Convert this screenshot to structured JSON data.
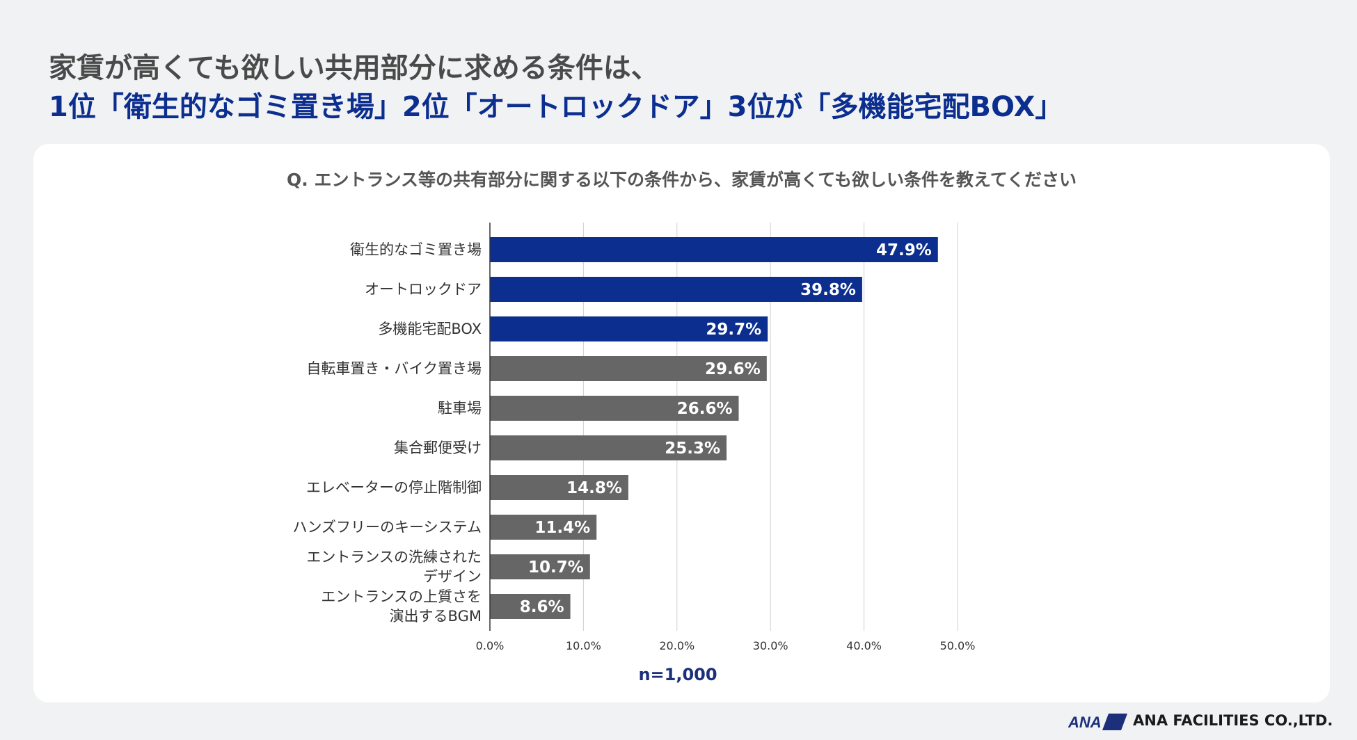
{
  "header": {
    "title_line1": "家賃が高くても欲しい共用部分に求める条件は、",
    "title_line2": "1位「衛生的なゴミ置き場」2位「オートロックドア」3位が「多機能宅配BOX」"
  },
  "footer": {
    "logo_text": "ANA",
    "company": "ANA FACILITIES CO.,LTD."
  },
  "colors": {
    "highlight": "#0b2e8f",
    "other": "#666666",
    "gridline": "#d0d0d0"
  },
  "chart_data": {
    "type": "bar",
    "orientation": "horizontal",
    "title": "Q. エントランス等の共有部分に関する以下の条件から、家賃が高くても欲しい条件を教えてください",
    "categories": [
      [
        "衛生的なゴミ置き場"
      ],
      [
        "オートロックドア"
      ],
      [
        "多機能宅配BOX"
      ],
      [
        "自転車置き・バイク置き場"
      ],
      [
        "駐車場"
      ],
      [
        "集合郵便受け"
      ],
      [
        "エレベーターの停止階制御"
      ],
      [
        "ハンズフリーのキーシステム"
      ],
      [
        "エントランスの洗練された",
        "デザイン"
      ],
      [
        "エントランスの上質さを",
        "演出するBGM"
      ]
    ],
    "values": [
      47.9,
      39.8,
      29.7,
      29.6,
      26.6,
      25.3,
      14.8,
      11.4,
      10.7,
      8.6
    ],
    "value_labels": [
      "47.9%",
      "39.8%",
      "29.7%",
      "29.6%",
      "26.6%",
      "25.3%",
      "14.8%",
      "11.4%",
      "10.7%",
      "8.6%"
    ],
    "highlighted_count": 3,
    "xlim": [
      0,
      50
    ],
    "xticks": [
      0,
      10,
      20,
      30,
      40,
      50
    ],
    "xtick_labels": [
      "0.0%",
      "10.0%",
      "20.0%",
      "30.0%",
      "40.0%",
      "50.0%"
    ],
    "note": "n=1,000",
    "grid": true,
    "legend": "none"
  }
}
